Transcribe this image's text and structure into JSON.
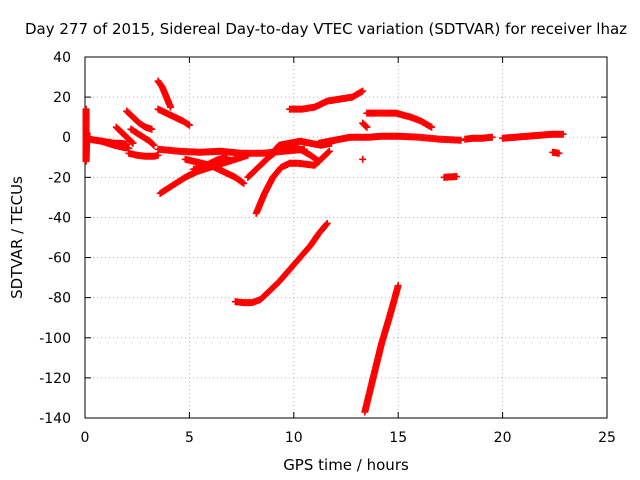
{
  "chart_data": {
    "type": "scatter",
    "title": "Day 277 of 2015, Sidereal Day-to-day VTEC variation (SDTVAR) for receiver lhaz",
    "xlabel": "GPS time / hours",
    "ylabel": "SDTVAR / TECUs",
    "xlim": [
      0,
      25
    ],
    "ylim": [
      -140,
      40
    ],
    "xticks": [
      "0",
      "5",
      "10",
      "15",
      "20",
      "25"
    ],
    "yticks": [
      "40",
      "20",
      "0",
      "-20",
      "-40",
      "-60",
      "-80",
      "-100",
      "-120",
      "-140"
    ],
    "grid": true,
    "marker": "plus",
    "series_color": "#ff0000",
    "series": [
      {
        "points": [
          [
            0.05,
            14
          ],
          [
            0.05,
            8
          ],
          [
            0.05,
            3
          ],
          [
            0.05,
            -2
          ],
          [
            0.05,
            -6
          ],
          [
            0.05,
            -10
          ],
          [
            0.05,
            -12
          ],
          [
            0.1,
            2
          ]
        ]
      },
      {
        "points": [
          [
            0.2,
            -1
          ],
          [
            0.5,
            -1.5
          ],
          [
            0.8,
            -2
          ],
          [
            1.1,
            -2.5
          ],
          [
            1.4,
            -3
          ],
          [
            1.7,
            -3
          ],
          [
            2.0,
            -3.5
          ]
        ]
      },
      {
        "points": [
          [
            0.8,
            -2
          ],
          [
            1.1,
            -3
          ],
          [
            1.4,
            -4
          ],
          [
            1.8,
            -5
          ],
          [
            2.1,
            -5.5
          ]
        ]
      },
      {
        "points": [
          [
            1.5,
            5
          ],
          [
            1.7,
            3
          ],
          [
            1.9,
            1
          ],
          [
            2.1,
            -1
          ],
          [
            2.3,
            -3
          ]
        ]
      },
      {
        "points": [
          [
            2.0,
            13
          ],
          [
            2.3,
            10
          ],
          [
            2.6,
            7
          ],
          [
            2.9,
            5
          ],
          [
            3.2,
            4
          ]
        ]
      },
      {
        "points": [
          [
            2.2,
            4
          ],
          [
            2.5,
            2
          ],
          [
            2.8,
            0
          ],
          [
            3.1,
            -2
          ],
          [
            3.3,
            -4
          ]
        ]
      },
      {
        "points": [
          [
            2.1,
            -8
          ],
          [
            2.5,
            -9
          ],
          [
            2.9,
            -9.5
          ],
          [
            3.3,
            -9.5
          ],
          [
            3.5,
            -9
          ]
        ]
      },
      {
        "points": [
          [
            3.5,
            28
          ],
          [
            3.7,
            25
          ],
          [
            3.9,
            20
          ],
          [
            4.1,
            15
          ]
        ]
      },
      {
        "points": [
          [
            3.5,
            14
          ],
          [
            3.9,
            12
          ],
          [
            4.3,
            10
          ],
          [
            4.7,
            8
          ],
          [
            5.0,
            6
          ]
        ]
      },
      {
        "points": [
          [
            3.5,
            -6
          ],
          [
            4.5,
            -7
          ],
          [
            5.5,
            -7.5
          ],
          [
            6.5,
            -7
          ],
          [
            7.5,
            -8
          ],
          [
            8.5,
            -8
          ],
          [
            9.5,
            -7
          ],
          [
            10.5,
            -6
          ]
        ]
      },
      {
        "points": [
          [
            3.6,
            -28
          ],
          [
            4.2,
            -24
          ],
          [
            4.8,
            -20
          ],
          [
            5.4,
            -17
          ],
          [
            6.0,
            -15
          ],
          [
            6.6,
            -13
          ],
          [
            7.2,
            -11
          ],
          [
            7.8,
            -9
          ]
        ]
      },
      {
        "points": [
          [
            4.8,
            -11
          ],
          [
            5.2,
            -12
          ],
          [
            5.6,
            -13
          ],
          [
            6.0,
            -14
          ],
          [
            6.4,
            -16
          ],
          [
            6.8,
            -18
          ],
          [
            7.2,
            -20
          ],
          [
            7.6,
            -23
          ]
        ]
      },
      {
        "points": [
          [
            5.2,
            -16
          ],
          [
            5.6,
            -15
          ],
          [
            6.0,
            -13
          ],
          [
            6.4,
            -11
          ],
          [
            6.8,
            -10
          ]
        ]
      },
      {
        "points": [
          [
            7.2,
            -82
          ],
          [
            7.6,
            -82.5
          ],
          [
            8.0,
            -82.5
          ],
          [
            8.4,
            -81
          ],
          [
            8.8,
            -77
          ],
          [
            9.3,
            -72
          ],
          [
            9.8,
            -66
          ],
          [
            10.3,
            -60
          ],
          [
            10.8,
            -54
          ],
          [
            11.2,
            -48
          ],
          [
            11.6,
            -43
          ]
        ]
      },
      {
        "points": [
          [
            8.2,
            -38
          ],
          [
            8.6,
            -28
          ],
          [
            9.0,
            -20
          ],
          [
            9.4,
            -15
          ],
          [
            9.8,
            -13
          ],
          [
            10.2,
            -13
          ],
          [
            10.6,
            -13.5
          ],
          [
            11.0,
            -14
          ],
          [
            11.4,
            -10
          ],
          [
            11.7,
            -7
          ]
        ]
      },
      {
        "points": [
          [
            7.8,
            -20
          ],
          [
            8.3,
            -15
          ],
          [
            8.8,
            -10
          ],
          [
            9.3,
            -6
          ],
          [
            9.8,
            -4
          ],
          [
            10.3,
            -6
          ],
          [
            10.8,
            -9
          ],
          [
            11.2,
            -12
          ]
        ]
      },
      {
        "points": [
          [
            8.8,
            -10
          ],
          [
            9.3,
            -4
          ],
          [
            9.8,
            -3
          ],
          [
            10.3,
            -2
          ],
          [
            10.8,
            -3
          ],
          [
            11.3,
            -4
          ],
          [
            11.8,
            -3
          ]
        ]
      },
      {
        "points": [
          [
            9.8,
            14
          ],
          [
            10.4,
            14
          ],
          [
            11.0,
            15
          ],
          [
            11.6,
            18
          ],
          [
            12.2,
            19
          ],
          [
            12.8,
            20
          ],
          [
            13.3,
            23
          ]
        ]
      },
      {
        "points": [
          [
            11.2,
            -3
          ],
          [
            11.7,
            -2
          ],
          [
            12.2,
            -1
          ],
          [
            12.7,
            0
          ],
          [
            13.2,
            0
          ],
          [
            13.6,
            0
          ],
          [
            14.2,
            0.5
          ],
          [
            15.0,
            0.5
          ],
          [
            16.0,
            0
          ],
          [
            17.0,
            -1
          ],
          [
            18.0,
            -1.5
          ]
        ]
      },
      {
        "points": [
          [
            13.3,
            7
          ],
          [
            13.5,
            5
          ]
        ]
      },
      {
        "points": [
          [
            13.3,
            -11
          ]
        ]
      },
      {
        "points": [
          [
            13.5,
            12
          ],
          [
            14.2,
            12
          ],
          [
            14.9,
            12
          ],
          [
            15.6,
            10
          ],
          [
            16.1,
            8
          ],
          [
            16.6,
            5
          ]
        ]
      },
      {
        "points": [
          [
            13.4,
            -137
          ],
          [
            13.8,
            -120
          ],
          [
            14.2,
            -103
          ],
          [
            14.6,
            -89
          ],
          [
            15.0,
            -74
          ]
        ]
      },
      {
        "points": [
          [
            17.2,
            -20
          ],
          [
            17.5,
            -19.8
          ],
          [
            17.8,
            -19.6
          ]
        ]
      },
      {
        "points": [
          [
            18.2,
            -1
          ],
          [
            18.6,
            -0.5
          ],
          [
            19.0,
            -0.5
          ],
          [
            19.5,
            0
          ]
        ]
      },
      {
        "points": [
          [
            20.0,
            -0.5
          ],
          [
            20.6,
            0
          ],
          [
            21.2,
            0.5
          ],
          [
            21.8,
            1
          ],
          [
            22.4,
            1.5
          ],
          [
            22.9,
            1.5
          ]
        ]
      },
      {
        "points": [
          [
            22.4,
            -7.5
          ],
          [
            22.7,
            -8
          ]
        ]
      }
    ]
  }
}
